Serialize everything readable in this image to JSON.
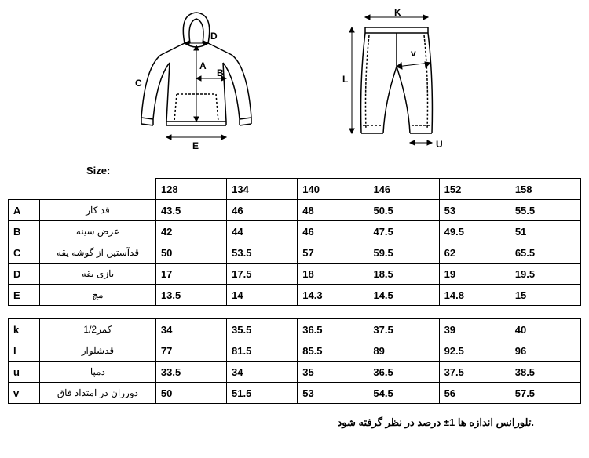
{
  "size_label": "Size:",
  "sizes": [
    "128",
    "134",
    "140",
    "146",
    "152",
    "158"
  ],
  "top_rows": [
    {
      "key": "A",
      "label": "قد کار",
      "vals": [
        "43.5",
        "46",
        "48",
        "50.5",
        "53",
        "55.5"
      ]
    },
    {
      "key": "B",
      "label": "عرض سینه",
      "vals": [
        "42",
        "44",
        "46",
        "47.5",
        "49.5",
        "51"
      ]
    },
    {
      "key": "C",
      "label": "قدآستین از گوشه یقه",
      "vals": [
        "50",
        "53.5",
        "57",
        "59.5",
        "62",
        "65.5"
      ]
    },
    {
      "key": "D",
      "label": "بازی یقه",
      "vals": [
        "17",
        "17.5",
        "18",
        "18.5",
        "19",
        "19.5"
      ]
    },
    {
      "key": "E",
      "label": "مچ",
      "vals": [
        "13.5",
        "14",
        "14.3",
        "14.5",
        "14.8",
        "15"
      ]
    }
  ],
  "bottom_rows": [
    {
      "key": "k",
      "label": "1/2کمر",
      "vals": [
        "34",
        "35.5",
        "36.5",
        "37.5",
        "39",
        "40"
      ]
    },
    {
      "key": "l",
      "label": "قدشلوار",
      "vals": [
        "77",
        "81.5",
        "85.5",
        "89",
        "92.5",
        "96"
      ]
    },
    {
      "key": "u",
      "label": "دمپا",
      "vals": [
        "33.5",
        "34",
        "35",
        "36.5",
        "37.5",
        "38.5"
      ]
    },
    {
      "key": "v",
      "label": "دورران در امتداد فاق",
      "vals": [
        "50",
        "51.5",
        "53",
        "54.5",
        "56",
        "57.5"
      ]
    }
  ],
  "footnote": "تلورانس اندازه ها  1± درصد در نظر گرفته شود.",
  "hoodie_labels": {
    "A": "A",
    "B": "B",
    "C": "C",
    "D": "D",
    "E": "E"
  },
  "pants_labels": {
    "K": "K",
    "L": "L",
    "U": "U",
    "V": "v"
  },
  "colors": {
    "stroke": "#000000",
    "bg": "#ffffff"
  }
}
